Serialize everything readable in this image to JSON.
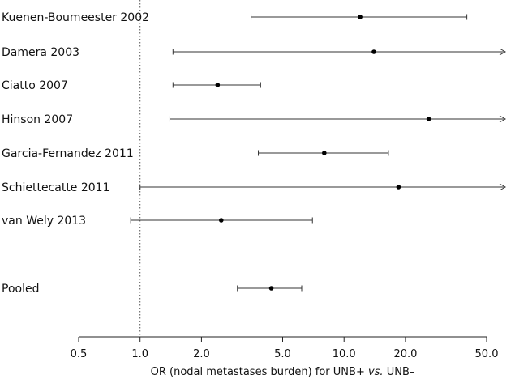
{
  "chart_data": {
    "type": "forest",
    "xscale": "log",
    "xlim": [
      0.5,
      50
    ],
    "xticks": [
      0.5,
      1.0,
      2.0,
      5.0,
      10.0,
      20.0,
      50.0
    ],
    "tick_labels": [
      "0.5",
      "1.0",
      "2.0",
      "5.0",
      "10.0",
      "20.0",
      "50.0"
    ],
    "reference_line": 1.0,
    "xlabel_parts": {
      "pre": "OR (nodal metastases burden) for UNB+ ",
      "italic": "vs.",
      "post": " UNB–"
    },
    "studies": [
      {
        "name": "Kuenen-Boumeester 2002",
        "or": 12.0,
        "lower": 3.5,
        "upper": 40.0,
        "upper_truncated": false
      },
      {
        "name": "Damera 2003",
        "or": 14.0,
        "lower": 1.45,
        "upper": 50.0,
        "upper_truncated": true
      },
      {
        "name": "Ciatto 2007",
        "or": 2.4,
        "lower": 1.45,
        "upper": 3.9,
        "upper_truncated": false
      },
      {
        "name": "Hinson 2007",
        "or": 26.0,
        "lower": 1.4,
        "upper": 50.0,
        "upper_truncated": true
      },
      {
        "name": "Garcia-Fernandez 2011",
        "or": 8.0,
        "lower": 3.8,
        "upper": 16.5,
        "upper_truncated": false
      },
      {
        "name": "Schiettecatte 2011",
        "or": 18.5,
        "lower": 1.0,
        "upper": 50.0,
        "upper_truncated": true
      },
      {
        "name": "van Wely 2013",
        "or": 2.5,
        "lower": 0.9,
        "upper": 7.0,
        "upper_truncated": false
      },
      {
        "name": "Pooled",
        "or": 4.4,
        "lower": 3.0,
        "upper": 6.2,
        "upper_truncated": false
      }
    ]
  }
}
